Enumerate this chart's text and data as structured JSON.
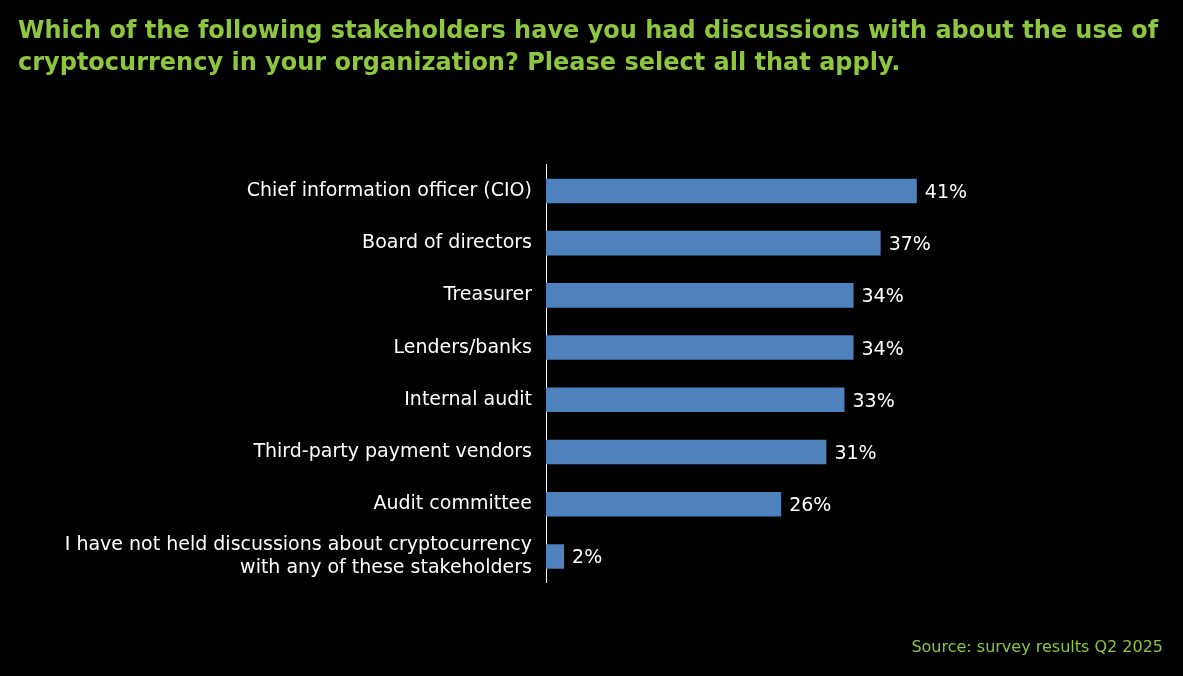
{
  "chart_data": {
    "type": "bar",
    "orientation": "horizontal",
    "title": "Which of the following stakeholders have you had discussions with about the use of cryptocurrency in your organization? Please select all that apply.",
    "categories": [
      "Chief information officer (CIO)",
      "Board of directors",
      "Treasurer",
      "Lenders/banks",
      "Internal audit",
      "Third-party payment vendors",
      "Audit committee",
      "I have not held discussions about cryptocurrency with any of these stakeholders"
    ],
    "values": [
      41,
      37,
      34,
      34,
      33,
      31,
      26,
      2
    ],
    "value_labels": [
      "41%",
      "37%",
      "34%",
      "34%",
      "33%",
      "31%",
      "26%",
      "2%"
    ],
    "color": "#4f81bd",
    "legend": false,
    "annotations": [
      "Source: survey results Q2 2025"
    ]
  }
}
